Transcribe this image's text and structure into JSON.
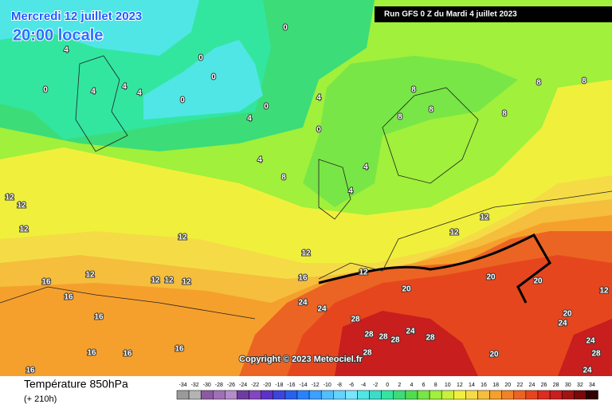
{
  "header": {
    "date": "Mercredi 12 juillet 2023",
    "time": "20:00 locale",
    "run": "Run GFS 0 Z du Mardi 4 juillet 2023"
  },
  "copyright": "Copyright © 2023 Meteociel.fr",
  "footer": {
    "title": "Température 850hPa",
    "lead": "(+ 210h)"
  },
  "legend": [
    {
      "value": -34,
      "color": "#9a9a9a"
    },
    {
      "value": -32,
      "color": "#b4b4b4"
    },
    {
      "value": -30,
      "color": "#8c5aa0"
    },
    {
      "value": -28,
      "color": "#a070b4"
    },
    {
      "value": -26,
      "color": "#b48cc8"
    },
    {
      "value": -24,
      "color": "#6e3ca0"
    },
    {
      "value": -22,
      "color": "#8246be"
    },
    {
      "value": -20,
      "color": "#5a32c8"
    },
    {
      "value": -18,
      "color": "#3c46dc"
    },
    {
      "value": -16,
      "color": "#2860f0"
    },
    {
      "value": -14,
      "color": "#2882ff"
    },
    {
      "value": -12,
      "color": "#3ca0ff"
    },
    {
      "value": -10,
      "color": "#50beff"
    },
    {
      "value": -8,
      "color": "#64d2ff"
    },
    {
      "value": -6,
      "color": "#78e6ff"
    },
    {
      "value": -4,
      "color": "#50e6e6"
    },
    {
      "value": -2,
      "color": "#3cdcc8"
    },
    {
      "value": 0,
      "color": "#32e6a0"
    },
    {
      "value": 2,
      "color": "#3cdc78"
    },
    {
      "value": 4,
      "color": "#50dc50"
    },
    {
      "value": 6,
      "color": "#78e646"
    },
    {
      "value": 8,
      "color": "#a0f03c"
    },
    {
      "value": 10,
      "color": "#c8f03c"
    },
    {
      "value": 12,
      "color": "#f0f03c"
    },
    {
      "value": 14,
      "color": "#f5dc46"
    },
    {
      "value": 16,
      "color": "#f5be3c"
    },
    {
      "value": 18,
      "color": "#f5a02d"
    },
    {
      "value": 20,
      "color": "#f08228"
    },
    {
      "value": 22,
      "color": "#eb6423"
    },
    {
      "value": 24,
      "color": "#e6461e"
    },
    {
      "value": 26,
      "color": "#dc2d1e"
    },
    {
      "value": 28,
      "color": "#c81e1e"
    },
    {
      "value": 30,
      "color": "#a01414"
    },
    {
      "value": 32,
      "color": "#780a0a"
    },
    {
      "value": 34,
      "color": "#320000"
    }
  ],
  "contour_labels": [
    "0",
    "0",
    "0",
    "0",
    "0",
    "0",
    "0",
    "4",
    "4",
    "4",
    "4",
    "4",
    "4",
    "4",
    "4",
    "4",
    "8",
    "8",
    "8",
    "8",
    "8",
    "8",
    "8",
    "12",
    "12",
    "12",
    "12",
    "12",
    "12",
    "12",
    "12",
    "12",
    "12",
    "12",
    "12",
    "16",
    "16",
    "16",
    "16",
    "16",
    "16",
    "16",
    "16",
    "24",
    "24",
    "24",
    "24",
    "24",
    "28",
    "28",
    "28",
    "28",
    "28",
    "20",
    "20",
    "20",
    "20",
    "20",
    "24",
    "28",
    "28",
    "12"
  ]
}
